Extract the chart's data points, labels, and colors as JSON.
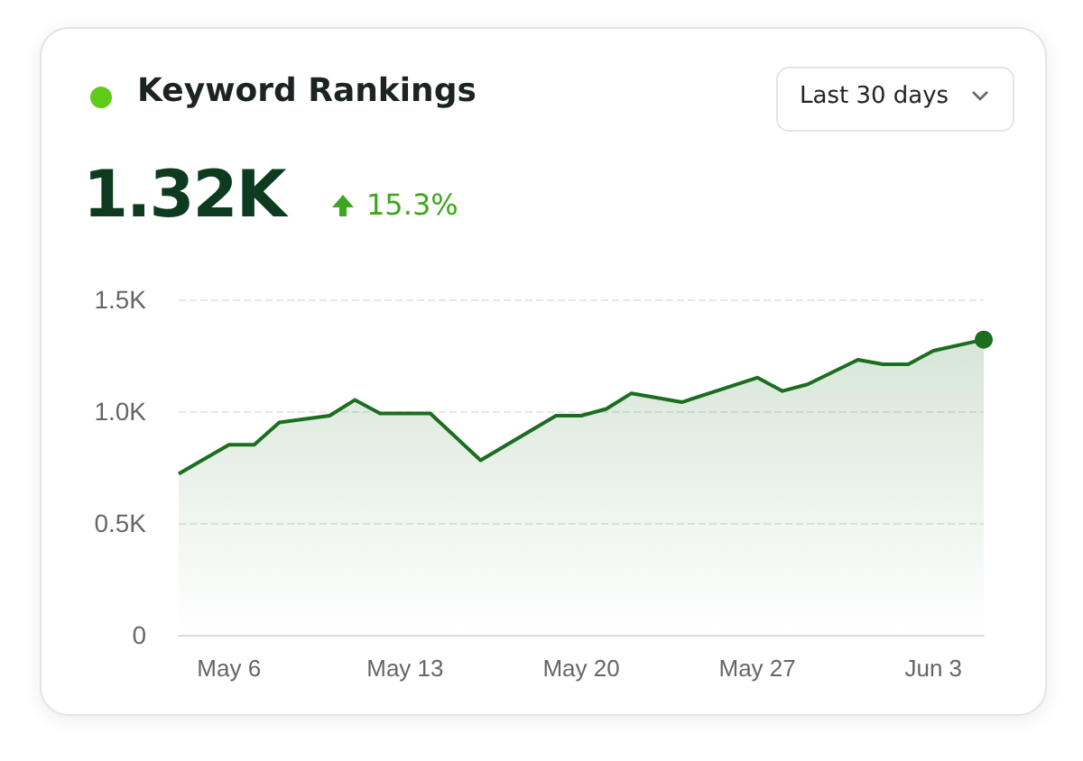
{
  "chart_data": {
    "type": "area",
    "title": "Keyword Rankings",
    "annotations": [
      "1.32K",
      "15.3%",
      "Last 30 days"
    ],
    "x": [
      "--05-04",
      "--05-06",
      "--05-07",
      "--05-08",
      "--05-10",
      "--05-11",
      "--05-12",
      "--05-14",
      "--05-16",
      "--05-19",
      "--05-20",
      "--05-21",
      "--05-22",
      "--05-24",
      "--05-27",
      "--05-28",
      "--05-29",
      "--05-31",
      "--06-01",
      "--06-02",
      "--06-03",
      "--06-05"
    ],
    "series": [
      {
        "color": "#1b6e1f",
        "values": [
          720,
          850,
          850,
          950,
          980,
          1050,
          990,
          990,
          780,
          980,
          980,
          1010,
          1080,
          1040,
          1150,
          1090,
          1120,
          1230,
          1210,
          1210,
          1270,
          1320
        ]
      }
    ],
    "xlim": [
      "--05-04",
      "--06-05"
    ],
    "xticks": [
      {
        "value": "--05-06",
        "label": "May 6"
      },
      {
        "value": "--05-13",
        "label": "May 13"
      },
      {
        "value": "--05-20",
        "label": "May 20"
      },
      {
        "value": "--05-27",
        "label": "May 27"
      },
      {
        "value": "--06-03",
        "label": "Jun 3"
      }
    ],
    "ylim": [
      0,
      1500
    ],
    "yticks": [
      0,
      {
        "value": 500,
        "label": "0.5K"
      },
      {
        "value": 1000,
        "label": "1.0K"
      },
      {
        "value": 1500,
        "label": "1.5K"
      }
    ],
    "grid": "y",
    "marker": "none",
    "line_style": "solid"
  }
}
